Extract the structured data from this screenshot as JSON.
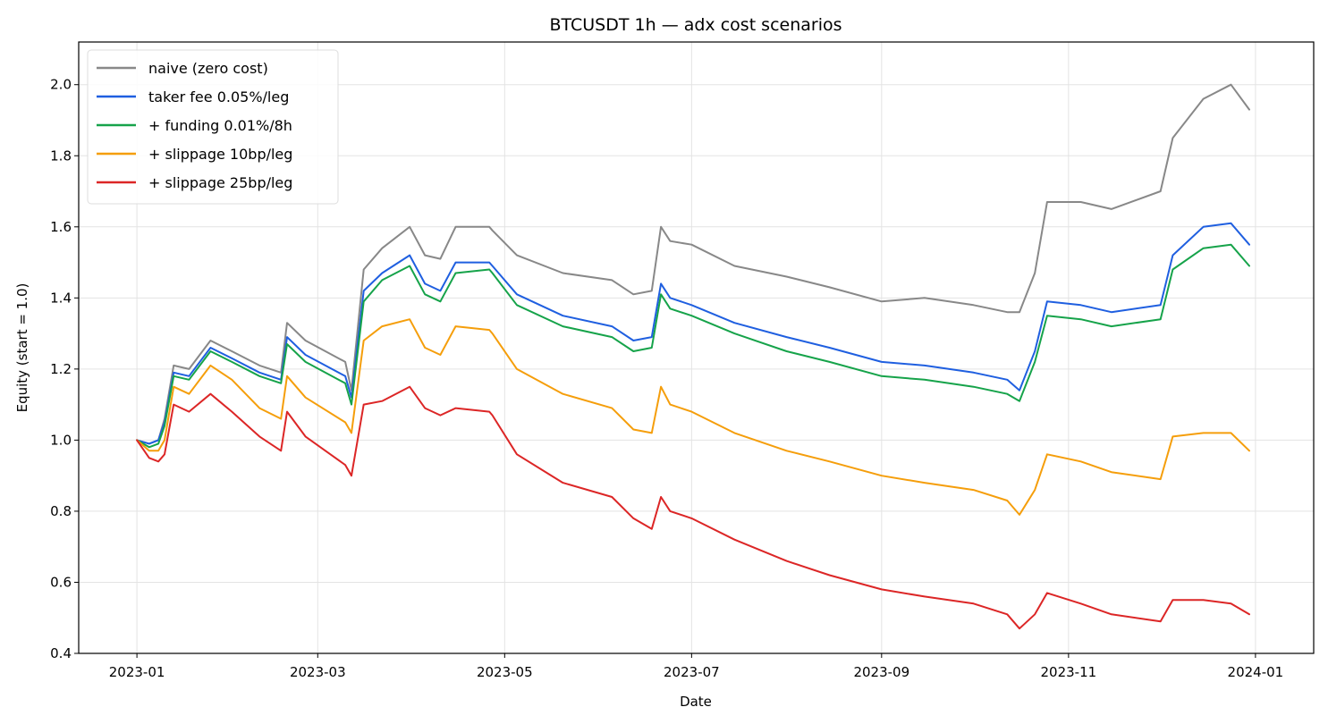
{
  "chart_data": {
    "type": "line",
    "title": "BTCUSDT 1h — adx cost scenarios",
    "xlabel": "Date",
    "ylabel": "Equity (start = 1.0)",
    "x_axis": {
      "type": "date",
      "range": [
        "2022-12-13",
        "2024-01-20"
      ],
      "ticks": [
        {
          "date": "2023-01-01",
          "label": "2023-01"
        },
        {
          "date": "2023-03-01",
          "label": "2023-03"
        },
        {
          "date": "2023-05-01",
          "label": "2023-05"
        },
        {
          "date": "2023-07-01",
          "label": "2023-07"
        },
        {
          "date": "2023-09-01",
          "label": "2023-09"
        },
        {
          "date": "2023-11-01",
          "label": "2023-11"
        },
        {
          "date": "2024-01-01",
          "label": "2024-01"
        }
      ]
    },
    "y_axis": {
      "range": [
        0.4,
        2.12
      ],
      "ticks": [
        0.4,
        0.6,
        0.8,
        1.0,
        1.2,
        1.4,
        1.6,
        1.8,
        2.0
      ],
      "tick_labels": [
        "0.4",
        "0.6",
        "0.8",
        "1.0",
        "1.2",
        "1.4",
        "1.6",
        "1.8",
        "2.0"
      ]
    },
    "grid": true,
    "legend_position": "top-left",
    "x": [
      "2023-01-01",
      "2023-01-05",
      "2023-01-08",
      "2023-01-10",
      "2023-01-13",
      "2023-01-18",
      "2023-01-25",
      "2023-02-01",
      "2023-02-10",
      "2023-02-17",
      "2023-02-19",
      "2023-02-25",
      "2023-03-10",
      "2023-03-12",
      "2023-03-16",
      "2023-03-22",
      "2023-03-31",
      "2023-04-05",
      "2023-04-10",
      "2023-04-15",
      "2023-04-26",
      "2023-04-27",
      "2023-05-05",
      "2023-05-20",
      "2023-06-05",
      "2023-06-12",
      "2023-06-18",
      "2023-06-21",
      "2023-06-24",
      "2023-07-01",
      "2023-07-15",
      "2023-08-01",
      "2023-08-15",
      "2023-09-01",
      "2023-09-15",
      "2023-10-01",
      "2023-10-12",
      "2023-10-16",
      "2023-10-21",
      "2023-10-25",
      "2023-11-05",
      "2023-11-15",
      "2023-12-01",
      "2023-12-05",
      "2023-12-15",
      "2023-12-24",
      "2023-12-30"
    ],
    "series": [
      {
        "name": "naive (zero cost)",
        "color": "#888888",
        "values": [
          1.0,
          0.99,
          1.0,
          1.06,
          1.21,
          1.2,
          1.28,
          1.25,
          1.21,
          1.19,
          1.33,
          1.28,
          1.22,
          1.14,
          1.48,
          1.54,
          1.6,
          1.52,
          1.51,
          1.6,
          1.6,
          1.59,
          1.52,
          1.47,
          1.45,
          1.41,
          1.42,
          1.6,
          1.56,
          1.55,
          1.49,
          1.46,
          1.43,
          1.39,
          1.4,
          1.38,
          1.36,
          1.36,
          1.47,
          1.67,
          1.67,
          1.65,
          1.7,
          1.85,
          1.96,
          2.0,
          1.93
        ]
      },
      {
        "name": "taker fee 0.05%/leg",
        "color": "#1f5fe0",
        "values": [
          1.0,
          0.99,
          1.0,
          1.05,
          1.19,
          1.18,
          1.26,
          1.23,
          1.19,
          1.17,
          1.29,
          1.24,
          1.18,
          1.12,
          1.42,
          1.47,
          1.52,
          1.44,
          1.42,
          1.5,
          1.5,
          1.49,
          1.41,
          1.35,
          1.32,
          1.28,
          1.29,
          1.44,
          1.4,
          1.38,
          1.33,
          1.29,
          1.26,
          1.22,
          1.21,
          1.19,
          1.17,
          1.14,
          1.25,
          1.39,
          1.38,
          1.36,
          1.38,
          1.52,
          1.6,
          1.61,
          1.55
        ]
      },
      {
        "name": "+ funding 0.01%/8h",
        "color": "#16a34a",
        "values": [
          1.0,
          0.98,
          0.99,
          1.04,
          1.18,
          1.17,
          1.25,
          1.22,
          1.18,
          1.16,
          1.27,
          1.22,
          1.16,
          1.1,
          1.39,
          1.45,
          1.49,
          1.41,
          1.39,
          1.47,
          1.48,
          1.47,
          1.38,
          1.32,
          1.29,
          1.25,
          1.26,
          1.41,
          1.37,
          1.35,
          1.3,
          1.25,
          1.22,
          1.18,
          1.17,
          1.15,
          1.13,
          1.11,
          1.22,
          1.35,
          1.34,
          1.32,
          1.34,
          1.48,
          1.54,
          1.55,
          1.49
        ]
      },
      {
        "name": "+ slippage 10bp/leg",
        "color": "#f59e0b",
        "values": [
          1.0,
          0.97,
          0.97,
          1.0,
          1.15,
          1.13,
          1.21,
          1.17,
          1.09,
          1.06,
          1.18,
          1.12,
          1.05,
          1.02,
          1.28,
          1.32,
          1.34,
          1.26,
          1.24,
          1.32,
          1.31,
          1.3,
          1.2,
          1.13,
          1.09,
          1.03,
          1.02,
          1.15,
          1.1,
          1.08,
          1.02,
          0.97,
          0.94,
          0.9,
          0.88,
          0.86,
          0.83,
          0.79,
          0.86,
          0.96,
          0.94,
          0.91,
          0.89,
          1.01,
          1.02,
          1.02,
          0.97
        ]
      },
      {
        "name": "+ slippage 25bp/leg",
        "color": "#dc2626",
        "values": [
          1.0,
          0.95,
          0.94,
          0.96,
          1.1,
          1.08,
          1.13,
          1.08,
          1.01,
          0.97,
          1.08,
          1.01,
          0.93,
          0.9,
          1.1,
          1.11,
          1.15,
          1.09,
          1.07,
          1.09,
          1.08,
          1.07,
          0.96,
          0.88,
          0.84,
          0.78,
          0.75,
          0.84,
          0.8,
          0.78,
          0.72,
          0.66,
          0.62,
          0.58,
          0.56,
          0.54,
          0.51,
          0.47,
          0.51,
          0.57,
          0.54,
          0.51,
          0.49,
          0.55,
          0.55,
          0.54,
          0.51
        ]
      }
    ]
  }
}
